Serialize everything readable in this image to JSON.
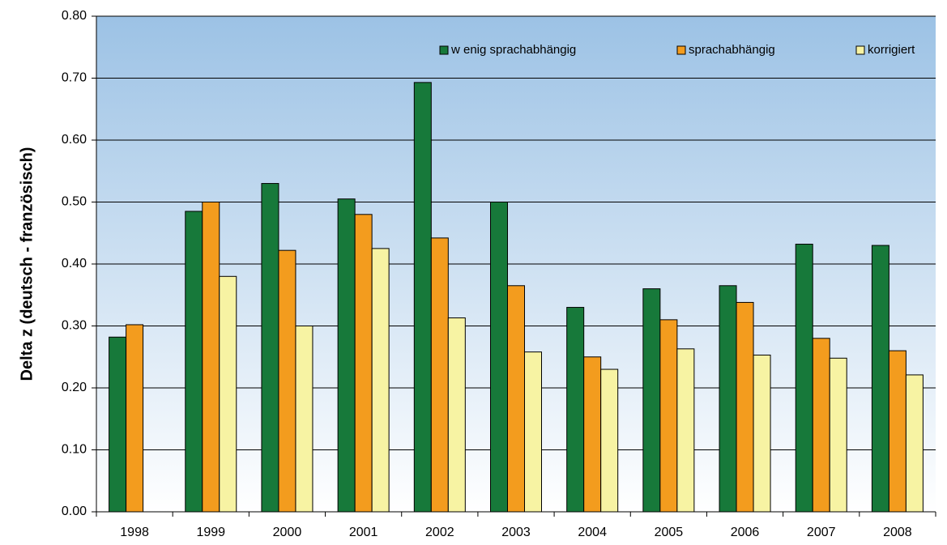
{
  "chart_data": {
    "type": "bar",
    "y_label": "Delta z (deutsch - französisch)",
    "categories": [
      "1998",
      "1999",
      "2000",
      "2001",
      "2002",
      "2003",
      "2004",
      "2005",
      "2006",
      "2007",
      "2008"
    ],
    "series": [
      {
        "name": "w enig sprachabhängig",
        "color": "#17793a",
        "values": [
          0.282,
          0.485,
          0.53,
          0.505,
          0.693,
          0.5,
          0.33,
          0.36,
          0.365,
          0.432,
          0.43
        ]
      },
      {
        "name": "sprachabhängig",
        "color": "#f39c1e",
        "values": [
          0.302,
          0.5,
          0.422,
          0.48,
          0.442,
          0.365,
          0.25,
          0.31,
          0.338,
          0.28,
          0.26
        ]
      },
      {
        "name": "korrigiert",
        "color": "#f7f3a3",
        "values": [
          null,
          0.38,
          0.3,
          0.425,
          0.313,
          0.258,
          0.23,
          0.263,
          0.253,
          0.248,
          0.221
        ]
      }
    ],
    "ylim": [
      0,
      0.8
    ],
    "yticks": [
      {
        "value": 0,
        "label": "0.00"
      },
      {
        "value": 0.1,
        "label": "0.10"
      },
      {
        "value": 0.2,
        "label": "0.20"
      },
      {
        "value": 0.3,
        "label": "0.30"
      },
      {
        "value": 0.4,
        "label": "0.40"
      },
      {
        "value": 0.5,
        "label": "0.50"
      },
      {
        "value": 0.6,
        "label": "0.60"
      },
      {
        "value": 0.7,
        "label": "0.70"
      },
      {
        "value": 0.8,
        "label": "0.80"
      }
    ],
    "grid": true,
    "legend": "top-right"
  }
}
